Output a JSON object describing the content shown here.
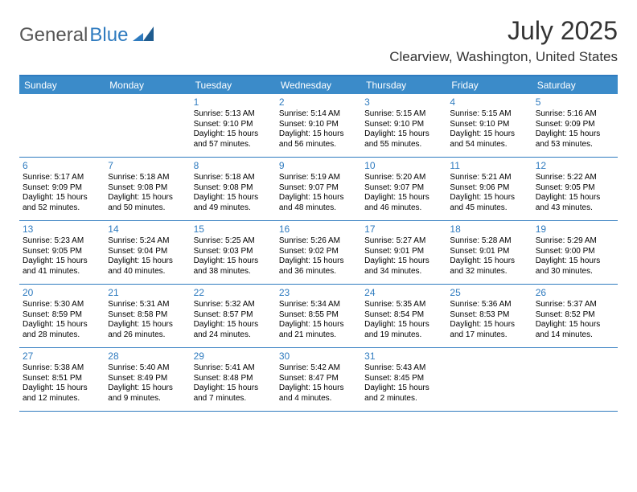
{
  "logo": {
    "part1": "General",
    "part2": "Blue"
  },
  "title": "July 2025",
  "location": "Clearview, Washington, United States",
  "colors": {
    "brand_blue": "#2f7bbf",
    "header_blue": "#3b8bc9",
    "logo_gray": "#555555",
    "text": "#000000",
    "title_text": "#333333"
  },
  "dayheads": [
    "Sunday",
    "Monday",
    "Tuesday",
    "Wednesday",
    "Thursday",
    "Friday",
    "Saturday"
  ],
  "weeks": [
    [
      null,
      null,
      {
        "n": "1",
        "sr": "Sunrise: 5:13 AM",
        "ss": "Sunset: 9:10 PM",
        "d1": "Daylight: 15 hours",
        "d2": "and 57 minutes."
      },
      {
        "n": "2",
        "sr": "Sunrise: 5:14 AM",
        "ss": "Sunset: 9:10 PM",
        "d1": "Daylight: 15 hours",
        "d2": "and 56 minutes."
      },
      {
        "n": "3",
        "sr": "Sunrise: 5:15 AM",
        "ss": "Sunset: 9:10 PM",
        "d1": "Daylight: 15 hours",
        "d2": "and 55 minutes."
      },
      {
        "n": "4",
        "sr": "Sunrise: 5:15 AM",
        "ss": "Sunset: 9:10 PM",
        "d1": "Daylight: 15 hours",
        "d2": "and 54 minutes."
      },
      {
        "n": "5",
        "sr": "Sunrise: 5:16 AM",
        "ss": "Sunset: 9:09 PM",
        "d1": "Daylight: 15 hours",
        "d2": "and 53 minutes."
      }
    ],
    [
      {
        "n": "6",
        "sr": "Sunrise: 5:17 AM",
        "ss": "Sunset: 9:09 PM",
        "d1": "Daylight: 15 hours",
        "d2": "and 52 minutes."
      },
      {
        "n": "7",
        "sr": "Sunrise: 5:18 AM",
        "ss": "Sunset: 9:08 PM",
        "d1": "Daylight: 15 hours",
        "d2": "and 50 minutes."
      },
      {
        "n": "8",
        "sr": "Sunrise: 5:18 AM",
        "ss": "Sunset: 9:08 PM",
        "d1": "Daylight: 15 hours",
        "d2": "and 49 minutes."
      },
      {
        "n": "9",
        "sr": "Sunrise: 5:19 AM",
        "ss": "Sunset: 9:07 PM",
        "d1": "Daylight: 15 hours",
        "d2": "and 48 minutes."
      },
      {
        "n": "10",
        "sr": "Sunrise: 5:20 AM",
        "ss": "Sunset: 9:07 PM",
        "d1": "Daylight: 15 hours",
        "d2": "and 46 minutes."
      },
      {
        "n": "11",
        "sr": "Sunrise: 5:21 AM",
        "ss": "Sunset: 9:06 PM",
        "d1": "Daylight: 15 hours",
        "d2": "and 45 minutes."
      },
      {
        "n": "12",
        "sr": "Sunrise: 5:22 AM",
        "ss": "Sunset: 9:05 PM",
        "d1": "Daylight: 15 hours",
        "d2": "and 43 minutes."
      }
    ],
    [
      {
        "n": "13",
        "sr": "Sunrise: 5:23 AM",
        "ss": "Sunset: 9:05 PM",
        "d1": "Daylight: 15 hours",
        "d2": "and 41 minutes."
      },
      {
        "n": "14",
        "sr": "Sunrise: 5:24 AM",
        "ss": "Sunset: 9:04 PM",
        "d1": "Daylight: 15 hours",
        "d2": "and 40 minutes."
      },
      {
        "n": "15",
        "sr": "Sunrise: 5:25 AM",
        "ss": "Sunset: 9:03 PM",
        "d1": "Daylight: 15 hours",
        "d2": "and 38 minutes."
      },
      {
        "n": "16",
        "sr": "Sunrise: 5:26 AM",
        "ss": "Sunset: 9:02 PM",
        "d1": "Daylight: 15 hours",
        "d2": "and 36 minutes."
      },
      {
        "n": "17",
        "sr": "Sunrise: 5:27 AM",
        "ss": "Sunset: 9:01 PM",
        "d1": "Daylight: 15 hours",
        "d2": "and 34 minutes."
      },
      {
        "n": "18",
        "sr": "Sunrise: 5:28 AM",
        "ss": "Sunset: 9:01 PM",
        "d1": "Daylight: 15 hours",
        "d2": "and 32 minutes."
      },
      {
        "n": "19",
        "sr": "Sunrise: 5:29 AM",
        "ss": "Sunset: 9:00 PM",
        "d1": "Daylight: 15 hours",
        "d2": "and 30 minutes."
      }
    ],
    [
      {
        "n": "20",
        "sr": "Sunrise: 5:30 AM",
        "ss": "Sunset: 8:59 PM",
        "d1": "Daylight: 15 hours",
        "d2": "and 28 minutes."
      },
      {
        "n": "21",
        "sr": "Sunrise: 5:31 AM",
        "ss": "Sunset: 8:58 PM",
        "d1": "Daylight: 15 hours",
        "d2": "and 26 minutes."
      },
      {
        "n": "22",
        "sr": "Sunrise: 5:32 AM",
        "ss": "Sunset: 8:57 PM",
        "d1": "Daylight: 15 hours",
        "d2": "and 24 minutes."
      },
      {
        "n": "23",
        "sr": "Sunrise: 5:34 AM",
        "ss": "Sunset: 8:55 PM",
        "d1": "Daylight: 15 hours",
        "d2": "and 21 minutes."
      },
      {
        "n": "24",
        "sr": "Sunrise: 5:35 AM",
        "ss": "Sunset: 8:54 PM",
        "d1": "Daylight: 15 hours",
        "d2": "and 19 minutes."
      },
      {
        "n": "25",
        "sr": "Sunrise: 5:36 AM",
        "ss": "Sunset: 8:53 PM",
        "d1": "Daylight: 15 hours",
        "d2": "and 17 minutes."
      },
      {
        "n": "26",
        "sr": "Sunrise: 5:37 AM",
        "ss": "Sunset: 8:52 PM",
        "d1": "Daylight: 15 hours",
        "d2": "and 14 minutes."
      }
    ],
    [
      {
        "n": "27",
        "sr": "Sunrise: 5:38 AM",
        "ss": "Sunset: 8:51 PM",
        "d1": "Daylight: 15 hours",
        "d2": "and 12 minutes."
      },
      {
        "n": "28",
        "sr": "Sunrise: 5:40 AM",
        "ss": "Sunset: 8:49 PM",
        "d1": "Daylight: 15 hours",
        "d2": "and 9 minutes."
      },
      {
        "n": "29",
        "sr": "Sunrise: 5:41 AM",
        "ss": "Sunset: 8:48 PM",
        "d1": "Daylight: 15 hours",
        "d2": "and 7 minutes."
      },
      {
        "n": "30",
        "sr": "Sunrise: 5:42 AM",
        "ss": "Sunset: 8:47 PM",
        "d1": "Daylight: 15 hours",
        "d2": "and 4 minutes."
      },
      {
        "n": "31",
        "sr": "Sunrise: 5:43 AM",
        "ss": "Sunset: 8:45 PM",
        "d1": "Daylight: 15 hours",
        "d2": "and 2 minutes."
      },
      null,
      null
    ]
  ]
}
